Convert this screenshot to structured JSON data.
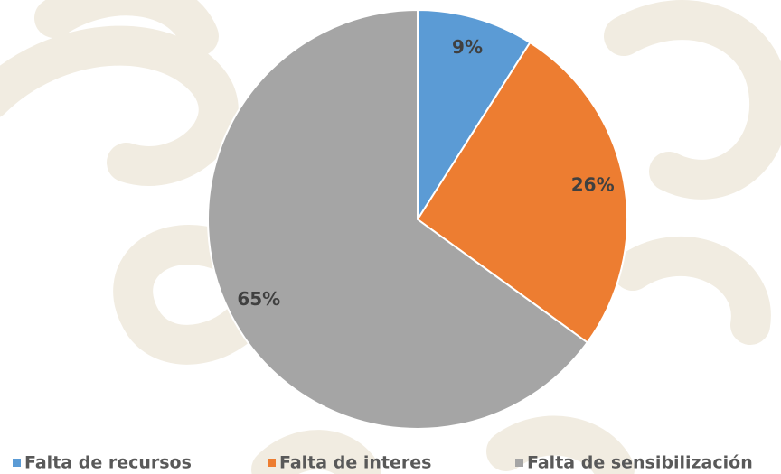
{
  "chart_data": {
    "type": "pie",
    "categories": [
      "Falta de recursos",
      "Falta de interes",
      "Falta de sensibilización"
    ],
    "values": [
      9,
      26,
      65
    ],
    "value_labels": [
      "9%",
      "26%",
      "65%"
    ],
    "colors": [
      "#5b9bd5",
      "#ed7d31",
      "#a5a5a5"
    ],
    "legend": "bottom"
  }
}
